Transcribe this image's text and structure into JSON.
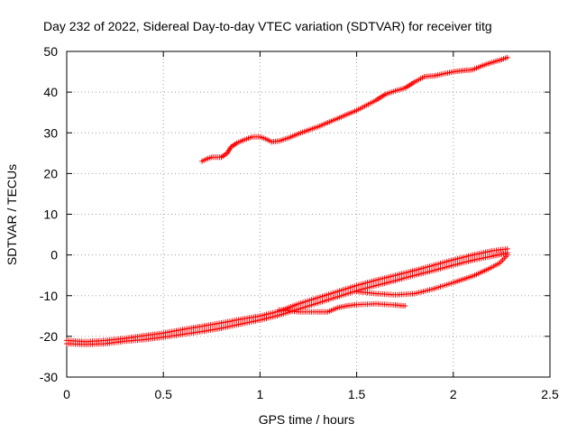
{
  "chart_data": {
    "type": "scatter",
    "title": "Day 232 of 2022, Sidereal Day-to-day VTEC variation (SDTVAR) for receiver titg",
    "xlabel": "GPS time / hours",
    "ylabel": "SDTVAR / TECUs",
    "xlim": [
      0,
      2.5
    ],
    "ylim": [
      -30,
      50
    ],
    "x_ticks": [
      0,
      0.5,
      1,
      1.5,
      2,
      2.5
    ],
    "x_tick_labels": [
      "0",
      "0.5",
      "1",
      "1.5",
      "2",
      "2.5"
    ],
    "y_ticks": [
      -30,
      -20,
      -10,
      0,
      10,
      20,
      30,
      40,
      50
    ],
    "y_tick_labels": [
      "-30",
      "-20",
      "-10",
      "0",
      "10",
      "20",
      "30",
      "40",
      "50"
    ],
    "grid": true,
    "marker": "+",
    "color": "#ff0000",
    "series": [
      {
        "name": "upper-track",
        "points": [
          [
            0.7,
            23
          ],
          [
            0.72,
            23.5
          ],
          [
            0.75,
            24
          ],
          [
            0.8,
            24
          ],
          [
            0.83,
            25
          ],
          [
            0.85,
            26.5
          ],
          [
            0.88,
            27.5
          ],
          [
            0.92,
            28.3
          ],
          [
            0.96,
            29
          ],
          [
            1.0,
            29
          ],
          [
            1.03,
            28.5
          ],
          [
            1.06,
            27.8
          ],
          [
            1.1,
            28
          ],
          [
            1.15,
            28.8
          ],
          [
            1.2,
            29.8
          ],
          [
            1.3,
            31.5
          ],
          [
            1.4,
            33.5
          ],
          [
            1.5,
            35.5
          ],
          [
            1.6,
            38
          ],
          [
            1.65,
            39.5
          ],
          [
            1.7,
            40.3
          ],
          [
            1.75,
            41
          ],
          [
            1.8,
            42.5
          ],
          [
            1.85,
            43.8
          ],
          [
            1.9,
            44
          ],
          [
            1.95,
            44.5
          ],
          [
            2.0,
            45
          ],
          [
            2.05,
            45.3
          ],
          [
            2.1,
            45.5
          ],
          [
            2.15,
            46.5
          ],
          [
            2.2,
            47.3
          ],
          [
            2.25,
            48
          ],
          [
            2.28,
            48.5
          ]
        ]
      },
      {
        "name": "lower-track-a",
        "points": [
          [
            0.0,
            -21
          ],
          [
            0.1,
            -21.3
          ],
          [
            0.2,
            -21
          ],
          [
            0.3,
            -20.5
          ],
          [
            0.4,
            -19.8
          ],
          [
            0.5,
            -19.2
          ],
          [
            0.6,
            -18.3
          ],
          [
            0.7,
            -17.5
          ],
          [
            0.8,
            -16.7
          ],
          [
            0.9,
            -15.8
          ],
          [
            1.0,
            -15
          ],
          [
            1.1,
            -13.8
          ],
          [
            1.2,
            -12
          ],
          [
            1.3,
            -10.5
          ],
          [
            1.4,
            -9
          ],
          [
            1.5,
            -7.5
          ],
          [
            1.6,
            -6.2
          ],
          [
            1.7,
            -5
          ],
          [
            1.8,
            -3.8
          ],
          [
            1.9,
            -2.5
          ],
          [
            2.0,
            -1.2
          ],
          [
            2.1,
            0
          ],
          [
            2.2,
            1
          ],
          [
            2.28,
            1.5
          ]
        ]
      },
      {
        "name": "lower-track-b",
        "points": [
          [
            0.0,
            -21.8
          ],
          [
            0.1,
            -22
          ],
          [
            0.2,
            -21.8
          ],
          [
            0.3,
            -21.2
          ],
          [
            0.4,
            -20.8
          ],
          [
            0.5,
            -20.2
          ],
          [
            0.6,
            -19.5
          ],
          [
            0.7,
            -18.8
          ],
          [
            0.8,
            -18
          ],
          [
            0.9,
            -17
          ],
          [
            1.0,
            -16
          ],
          [
            1.1,
            -14.8
          ],
          [
            1.2,
            -13.3
          ],
          [
            1.3,
            -11.8
          ],
          [
            1.4,
            -10.3
          ],
          [
            1.5,
            -8.8
          ],
          [
            1.6,
            -7.5
          ],
          [
            1.7,
            -6.3
          ],
          [
            1.8,
            -5
          ],
          [
            1.9,
            -3.8
          ],
          [
            2.0,
            -2.5
          ],
          [
            2.1,
            -1.3
          ],
          [
            2.2,
            -0.3
          ],
          [
            2.28,
            0.5
          ]
        ]
      },
      {
        "name": "branch-upper-hook",
        "points": [
          [
            1.5,
            -9
          ],
          [
            1.6,
            -9.5
          ],
          [
            1.7,
            -9.8
          ],
          [
            1.8,
            -9.5
          ],
          [
            1.9,
            -8.3
          ],
          [
            2.0,
            -6.8
          ],
          [
            2.1,
            -5.2
          ],
          [
            2.18,
            -3.5
          ],
          [
            2.24,
            -2
          ],
          [
            2.28,
            0
          ]
        ]
      },
      {
        "name": "branch-lower-hook",
        "points": [
          [
            1.1,
            -13.5
          ],
          [
            1.2,
            -14
          ],
          [
            1.3,
            -14
          ],
          [
            1.35,
            -14
          ],
          [
            1.4,
            -13
          ],
          [
            1.45,
            -12.5
          ],
          [
            1.5,
            -12.2
          ],
          [
            1.6,
            -12
          ],
          [
            1.7,
            -12.3
          ],
          [
            1.75,
            -12.5
          ]
        ]
      }
    ]
  }
}
